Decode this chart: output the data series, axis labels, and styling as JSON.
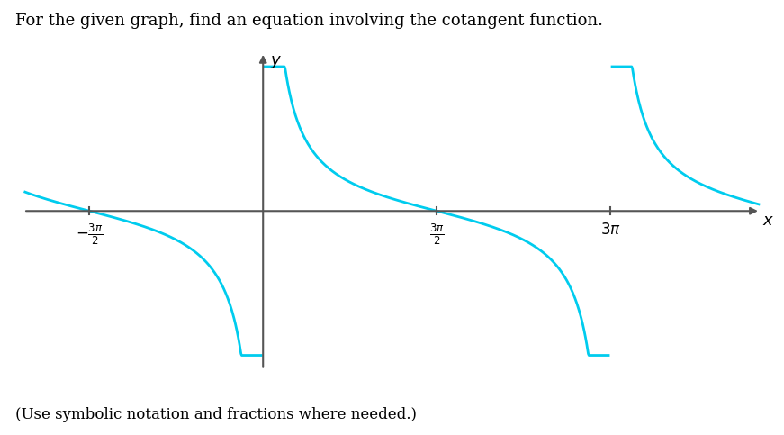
{
  "title_text": "For the given graph, find an equation involving the cotangent function.",
  "subtitle_text": "(Use symbolic notation and fractions where needed.)",
  "curve_color": "#00CCEE",
  "axis_color": "#555555",
  "background_color": "#ffffff",
  "x_ticks": [
    -4.71238898,
    4.71238898,
    9.42477796
  ],
  "x_tick_labels": [
    "-\\frac{3\\pi}{2}",
    "\\frac{3\\pi}{2}",
    "3\\pi"
  ],
  "xlim": [
    -6.5,
    13.5
  ],
  "ylim": [
    -5.5,
    5.5
  ],
  "title_fontsize": 13,
  "subtitle_fontsize": 12,
  "tick_fontsize": 12,
  "curve_linewidth": 2.0,
  "y_clip": 5.0
}
